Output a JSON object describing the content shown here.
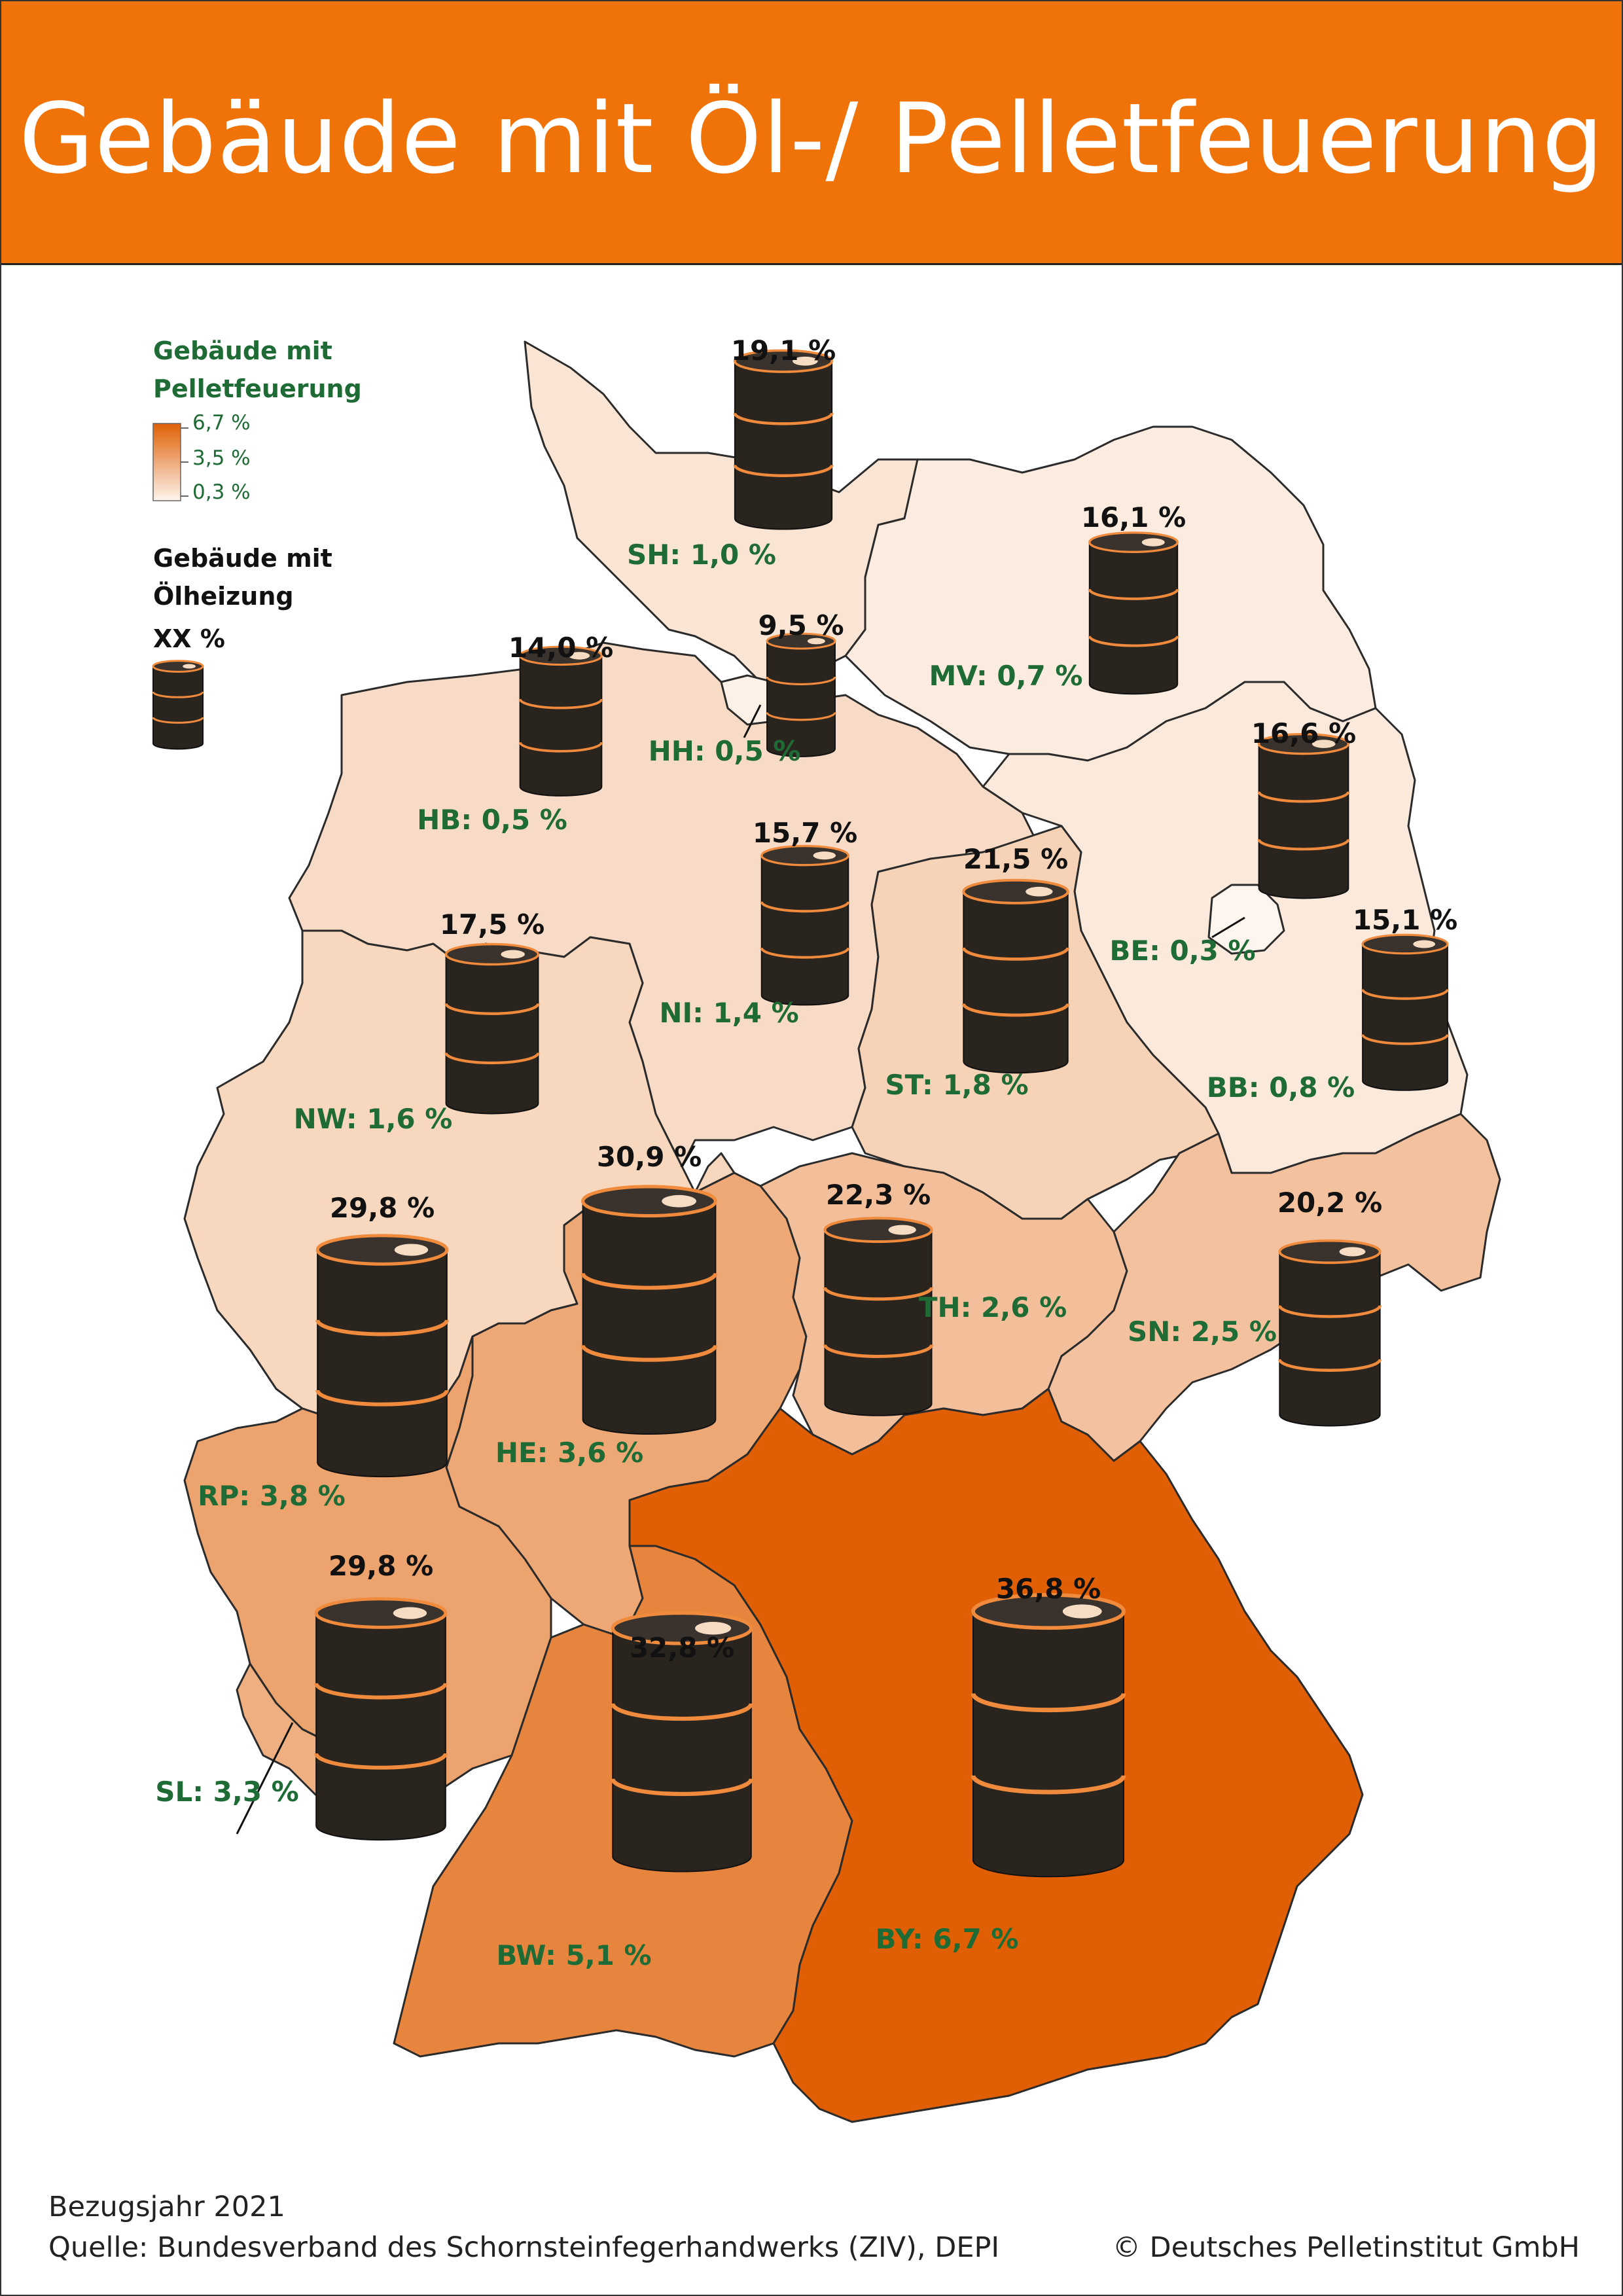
{
  "title": "Gebäude mit Öl-/ Pelletfeuerung",
  "legend": {
    "pellet_title": "Gebäude mit Pelletfeuerung",
    "scale_max": "6,7 %",
    "scale_mid": "3,5 %",
    "scale_min": "0,3 %",
    "oil_title": "Gebäude mit Ölheizung",
    "oil_placeholder": "XX %"
  },
  "colors": {
    "header": "#ef7309",
    "pellet_low": "#fdf5ee",
    "pellet_high": "#e05f04",
    "pellet_label": "#1f6b35",
    "barrel": "#2a241f",
    "barrel_band": "#f08a3c"
  },
  "states": [
    {
      "code": "SH",
      "pellet_label": "SH: 1,0 %",
      "pellet_pct": 1.0,
      "oil_label": "19,1 %",
      "oil_pct": 19.1
    },
    {
      "code": "MV",
      "pellet_label": "MV: 0,7 %",
      "pellet_pct": 0.7,
      "oil_label": "16,1 %",
      "oil_pct": 16.1
    },
    {
      "code": "HH",
      "pellet_label": "HH: 0,5 %",
      "pellet_pct": 0.5,
      "oil_label": "9,5 %",
      "oil_pct": 9.5
    },
    {
      "code": "HB",
      "pellet_label": "HB: 0,5 %",
      "pellet_pct": 0.5,
      "oil_label": "14,0 %",
      "oil_pct": 14.0
    },
    {
      "code": "NI",
      "pellet_label": "NI: 1,4 %",
      "pellet_pct": 1.4,
      "oil_label": "15,7 %",
      "oil_pct": 15.7
    },
    {
      "code": "BB",
      "pellet_label": "BB: 0,8 %",
      "pellet_pct": 0.8,
      "oil_label": "16,6 %",
      "oil_pct": 16.6
    },
    {
      "code": "BE",
      "pellet_label": "BE: 0,3 %",
      "pellet_pct": 0.3,
      "oil_label": "15,1 %",
      "oil_pct": 15.1
    },
    {
      "code": "ST",
      "pellet_label": "ST: 1,8 %",
      "pellet_pct": 1.8,
      "oil_label": "21,5 %",
      "oil_pct": 21.5
    },
    {
      "code": "NW",
      "pellet_label": "NW: 1,6 %",
      "pellet_pct": 1.6,
      "oil_label": "17,5 %",
      "oil_pct": 17.5
    },
    {
      "code": "HE",
      "pellet_label": "HE: 3,6 %",
      "pellet_pct": 3.6,
      "oil_label": "30,9 %",
      "oil_pct": 30.9
    },
    {
      "code": "TH",
      "pellet_label": "TH: 2,6 %",
      "pellet_pct": 2.6,
      "oil_label": "22,3 %",
      "oil_pct": 22.3
    },
    {
      "code": "SN",
      "pellet_label": "SN: 2,5 %",
      "pellet_pct": 2.5,
      "oil_label": "20,2 %",
      "oil_pct": 20.2
    },
    {
      "code": "RP",
      "pellet_label": "RP: 3,8 %",
      "pellet_pct": 3.8,
      "oil_label": "29,8 %",
      "oil_pct": 29.8
    },
    {
      "code": "SL",
      "pellet_label": "SL: 3,3 %",
      "pellet_pct": 3.3,
      "oil_label": "29,8 %",
      "oil_pct": 29.8
    },
    {
      "code": "BW",
      "pellet_label": "BW: 5,1 %",
      "pellet_pct": 5.1,
      "oil_label": "32,8 %",
      "oil_pct": 32.8
    },
    {
      "code": "BY",
      "pellet_label": "BY: 6,7 %",
      "pellet_pct": 6.7,
      "oil_label": "36,8 %",
      "oil_pct": 36.8
    }
  ],
  "footer": {
    "year": "Bezugsjahr 2021",
    "source": "Quelle: Bundesverband des Schornsteinfegerhandwerks (ZIV), DEPI",
    "copyright": "© Deutsches Pelletinstitut GmbH"
  }
}
